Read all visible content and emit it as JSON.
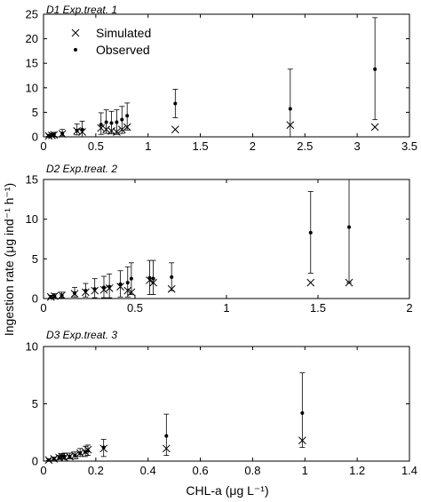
{
  "figure": {
    "ylabel": "Ingestion rate (μg ind⁻¹ h⁻¹)",
    "legend": {
      "position": "top-left of panel 1",
      "items": [
        {
          "label": "Simulated",
          "marker": "x-icon"
        },
        {
          "label": "Observed",
          "marker": "dot-icon"
        }
      ]
    },
    "colors": {
      "markers": "#000000",
      "axes": "#000000",
      "background": "#ffffff"
    }
  },
  "chart_data": [
    {
      "type": "scatter",
      "title": "D1 Exp.treat. 1",
      "xlabel": "",
      "ylabel": "Ingestion rate (μg ind⁻¹ h⁻¹)",
      "xlim": [
        0,
        3.5
      ],
      "ylim": [
        0,
        25
      ],
      "xticks": [
        "0",
        "0.5",
        "1",
        "1.5",
        "2",
        "2.5",
        "3",
        "3.5"
      ],
      "yticks": [
        "0",
        "5",
        "10",
        "15",
        "20",
        "25"
      ],
      "xtick_values": [
        0,
        0.5,
        1,
        1.5,
        2,
        2.5,
        3,
        3.5
      ],
      "ytick_values": [
        0,
        5,
        10,
        15,
        20,
        25
      ],
      "grid": false,
      "legend": [
        "Simulated",
        "Observed"
      ],
      "series": [
        {
          "name": "Simulated",
          "marker": "x",
          "x": [
            0.05,
            0.08,
            0.1,
            0.18,
            0.32,
            0.37,
            0.55,
            0.6,
            0.65,
            0.7,
            0.75,
            0.8,
            1.26,
            2.36,
            3.17
          ],
          "y": [
            0.2,
            0.3,
            0.4,
            0.6,
            1.2,
            1.0,
            1.8,
            1.5,
            1.2,
            1.0,
            1.5,
            2.0,
            1.5,
            2.4,
            2.0
          ]
        },
        {
          "name": "Observed",
          "marker": "dot",
          "x": [
            0.05,
            0.08,
            0.1,
            0.18,
            0.32,
            0.37,
            0.55,
            0.6,
            0.65,
            0.7,
            0.75,
            0.8,
            1.26,
            2.36,
            3.17
          ],
          "y": [
            0.2,
            0.3,
            0.4,
            0.7,
            1.3,
            1.5,
            2.5,
            3.0,
            2.8,
            3.0,
            3.5,
            4.3,
            6.8,
            5.7,
            13.8
          ],
          "err_low": [
            0.1,
            0.2,
            0.3,
            0.5,
            0.9,
            1.5,
            2.0,
            2.3,
            2.2,
            2.5,
            2.8,
            2.9,
            2.9,
            5.7,
            10.3
          ],
          "err_high": [
            0.3,
            0.4,
            0.5,
            0.8,
            1.3,
            1.7,
            2.4,
            2.5,
            2.4,
            2.5,
            2.7,
            2.6,
            2.9,
            8.1,
            10.5
          ]
        }
      ]
    },
    {
      "type": "scatter",
      "title": "D2 Exp.treat. 2",
      "xlabel": "",
      "ylabel": "Ingestion rate (μg ind⁻¹ h⁻¹)",
      "xlim": [
        0,
        2
      ],
      "ylim": [
        0,
        15
      ],
      "xticks": [
        "0",
        "0.5",
        "1",
        "1.5",
        "2"
      ],
      "yticks": [
        "0",
        "5",
        "10",
        "15"
      ],
      "xtick_values": [
        0,
        0.5,
        1,
        1.5,
        2
      ],
      "ytick_values": [
        0,
        5,
        10,
        15
      ],
      "grid": false,
      "series": [
        {
          "name": "Simulated",
          "marker": "x",
          "x": [
            0.04,
            0.06,
            0.1,
            0.17,
            0.23,
            0.28,
            0.33,
            0.36,
            0.42,
            0.46,
            0.48,
            0.58,
            0.6,
            0.7,
            1.46,
            1.67
          ],
          "y": [
            0.2,
            0.3,
            0.4,
            0.6,
            0.8,
            1.0,
            1.1,
            1.3,
            1.5,
            1.0,
            0.8,
            2.3,
            2.0,
            1.2,
            2.0,
            2.0
          ]
        },
        {
          "name": "Observed",
          "marker": "dot",
          "x": [
            0.04,
            0.06,
            0.1,
            0.17,
            0.23,
            0.28,
            0.33,
            0.36,
            0.42,
            0.46,
            0.48,
            0.58,
            0.6,
            0.7,
            1.46,
            1.67
          ],
          "y": [
            0.2,
            0.3,
            0.4,
            0.7,
            1.0,
            1.2,
            1.4,
            1.5,
            1.8,
            2.0,
            2.5,
            2.6,
            2.5,
            2.7,
            8.3,
            9.0
          ],
          "err_low": [
            0.1,
            0.2,
            0.3,
            0.5,
            0.8,
            1.1,
            1.3,
            1.4,
            1.6,
            1.8,
            2.0,
            2.1,
            2.0,
            1.7,
            5.1,
            7.0
          ],
          "err_high": [
            0.2,
            0.3,
            0.4,
            0.7,
            0.9,
            1.3,
            1.4,
            1.6,
            1.7,
            2.0,
            2.0,
            2.2,
            2.3,
            1.8,
            5.2,
            6.0
          ]
        }
      ]
    },
    {
      "type": "scatter",
      "title": "D3 Exp.treat. 3",
      "xlabel": "CHL-a (μg L⁻¹)",
      "ylabel": "Ingestion rate (μg ind⁻¹ h⁻¹)",
      "xlim": [
        0,
        1.4
      ],
      "ylim": [
        0,
        10
      ],
      "xticks": [
        "0",
        "0.2",
        "0.4",
        "0.6",
        "0.8",
        "1",
        "1.2",
        "1.4"
      ],
      "yticks": [
        "0",
        "5",
        "10"
      ],
      "xtick_values": [
        0,
        0.2,
        0.4,
        0.6,
        0.8,
        1,
        1.2,
        1.4
      ],
      "ytick_values": [
        0,
        5,
        10
      ],
      "grid": false,
      "series": [
        {
          "name": "Simulated",
          "marker": "x",
          "x": [
            0.02,
            0.04,
            0.06,
            0.07,
            0.08,
            0.1,
            0.12,
            0.14,
            0.16,
            0.17,
            0.23,
            0.47,
            0.99
          ],
          "y": [
            0.1,
            0.2,
            0.3,
            0.4,
            0.3,
            0.4,
            0.5,
            0.7,
            0.8,
            1.0,
            1.1,
            1.1,
            1.8
          ]
        },
        {
          "name": "Observed",
          "marker": "dot",
          "x": [
            0.02,
            0.04,
            0.06,
            0.07,
            0.08,
            0.1,
            0.12,
            0.14,
            0.16,
            0.17,
            0.23,
            0.47,
            0.99
          ],
          "y": [
            0.1,
            0.2,
            0.3,
            0.4,
            0.4,
            0.4,
            0.5,
            0.7,
            0.8,
            0.9,
            1.2,
            2.2,
            4.2
          ],
          "err_low": [
            0.05,
            0.1,
            0.15,
            0.2,
            0.2,
            0.2,
            0.3,
            0.3,
            0.4,
            0.4,
            0.8,
            1.7,
            3.0
          ],
          "err_high": [
            0.1,
            0.15,
            0.2,
            0.25,
            0.3,
            0.3,
            0.3,
            0.4,
            0.5,
            0.5,
            0.7,
            1.9,
            3.5
          ]
        }
      ]
    }
  ]
}
